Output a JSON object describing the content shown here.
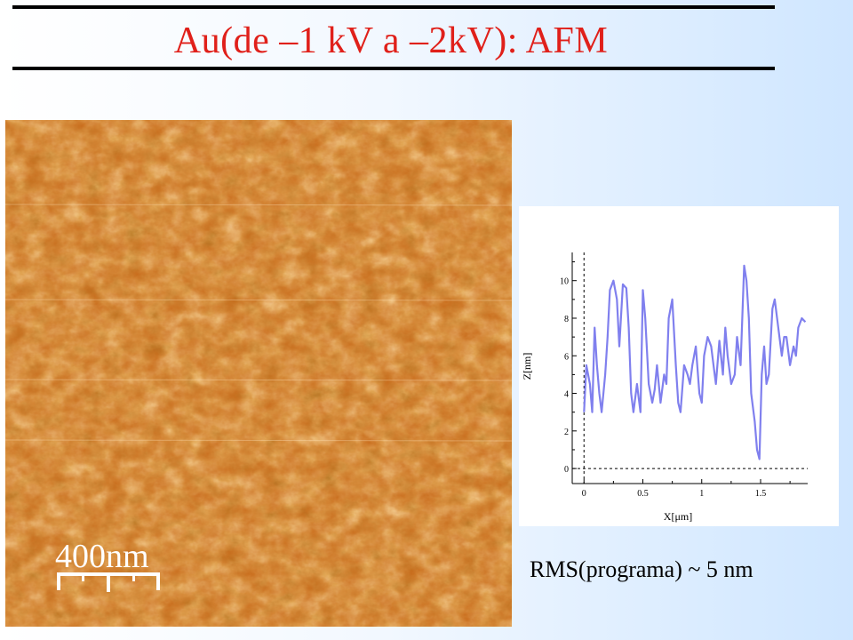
{
  "title": "Au(de –1 kV a –2kV):  AFM",
  "afm_image": {
    "scale_bar_label": "400nm",
    "colors": {
      "dark": "#5a1e02",
      "mid": "#c86a1a",
      "light": "#ffdca0"
    }
  },
  "caption": "RMS(programa) ~ 5 nm",
  "chart_data": {
    "type": "line",
    "xlabel": "X[μm]",
    "ylabel": "Z[nm]",
    "xlim": [
      -0.1,
      1.9
    ],
    "ylim": [
      -0.8,
      11.5
    ],
    "x_ticks": [
      0,
      0.5,
      1,
      1.5
    ],
    "x_tick_labels": [
      "0",
      "0.5",
      "1",
      "1.5"
    ],
    "y_ticks": [
      0,
      2,
      4,
      6,
      8,
      10
    ],
    "y_tick_labels": [
      "0",
      "2",
      "4",
      "6",
      "8",
      "10"
    ],
    "reference_lines": {
      "x": 0,
      "y": 0
    },
    "series": [
      {
        "color": "#8080ee",
        "x": [
          0,
          0.02,
          0.05,
          0.07,
          0.09,
          0.11,
          0.13,
          0.15,
          0.18,
          0.2,
          0.22,
          0.25,
          0.28,
          0.3,
          0.33,
          0.36,
          0.38,
          0.4,
          0.42,
          0.45,
          0.48,
          0.5,
          0.52,
          0.55,
          0.58,
          0.6,
          0.62,
          0.65,
          0.68,
          0.7,
          0.72,
          0.75,
          0.78,
          0.8,
          0.82,
          0.85,
          0.88,
          0.9,
          0.92,
          0.95,
          0.98,
          1.0,
          1.02,
          1.05,
          1.08,
          1.1,
          1.12,
          1.15,
          1.18,
          1.2,
          1.22,
          1.25,
          1.28,
          1.3,
          1.33,
          1.36,
          1.38,
          1.4,
          1.42,
          1.45,
          1.47,
          1.49,
          1.51,
          1.53,
          1.55,
          1.57,
          1.6,
          1.62,
          1.65,
          1.68,
          1.7,
          1.72,
          1.75,
          1.78,
          1.8,
          1.82,
          1.85,
          1.88
        ],
        "y": [
          3.0,
          5.5,
          4.5,
          3.0,
          7.5,
          5.5,
          4.0,
          3.0,
          5.0,
          7.0,
          9.5,
          10.0,
          9.0,
          6.5,
          9.8,
          9.6,
          7.5,
          4.0,
          3.0,
          4.5,
          3.0,
          9.5,
          8.0,
          4.5,
          3.5,
          4.2,
          5.5,
          3.5,
          5.0,
          4.5,
          8.0,
          9.0,
          5.5,
          3.5,
          3.0,
          5.5,
          5.0,
          4.5,
          5.5,
          6.5,
          4.0,
          3.5,
          6.0,
          7.0,
          6.5,
          5.5,
          4.5,
          6.8,
          5.0,
          7.5,
          6.0,
          4.5,
          5.0,
          7.0,
          5.5,
          10.8,
          10.0,
          8.0,
          4.0,
          2.5,
          1.0,
          0.5,
          5.0,
          6.5,
          4.5,
          5.0,
          8.5,
          9.0,
          7.5,
          6.0,
          7.0,
          7.0,
          5.5,
          6.5,
          6.0,
          7.5,
          8.0,
          7.8
        ]
      }
    ]
  }
}
